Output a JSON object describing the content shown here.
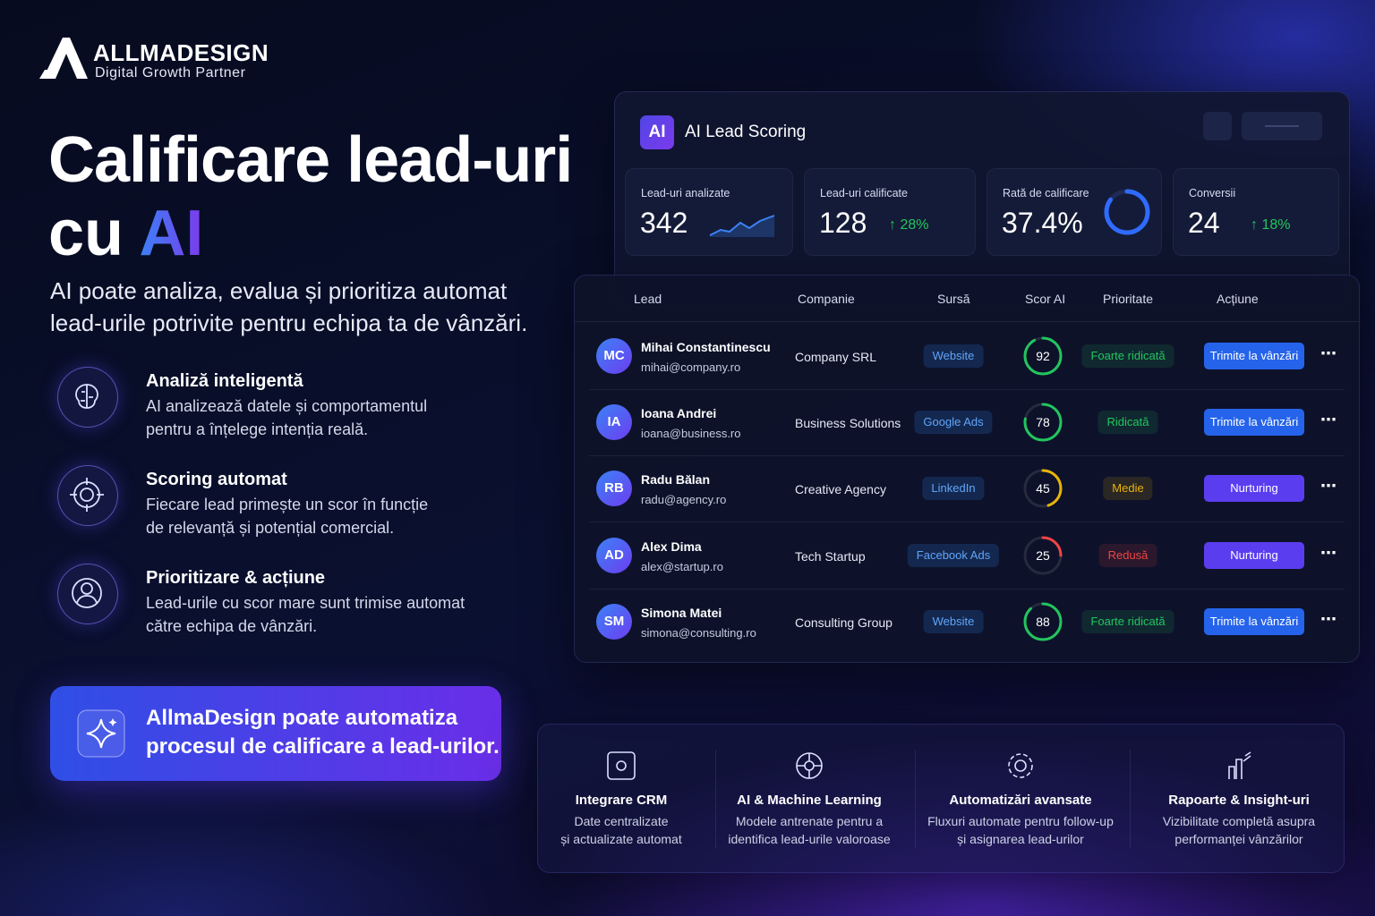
{
  "brand": {
    "name": "ALLMADESIGN",
    "tagline": "Digital Growth Partner"
  },
  "hero": {
    "title_line1": "Calificare lead-uri",
    "title_prefix": "cu",
    "title_highlight": "AI",
    "subtitle_lines": [
      "AI poate analiza, evalua și prioritiza automat",
      "lead-urile potrivite pentru echipa ta de vânzări."
    ]
  },
  "features": [
    {
      "title": "Analiză inteligentă",
      "lines": [
        "AI analizează datele și comportamentul",
        "pentru a înțelege intenția reală."
      ]
    },
    {
      "title": "Scoring automat",
      "lines": [
        "Fiecare lead primește un scor în funcție",
        "de relevanță și potențial comercial."
      ]
    },
    {
      "title": "Prioritizare & acțiune",
      "lines": [
        "Lead-urile cu scor mare sunt trimise automat",
        "către echipa de vânzări."
      ]
    }
  ],
  "cta": {
    "lines": [
      "AllmaDesign poate automatiza",
      "procesul de calificare a lead-urilor."
    ]
  },
  "dashboard": {
    "icon": "AI",
    "title": "AI Lead Scoring",
    "stats": [
      {
        "label": "Lead-uri analizate",
        "value": 342
      },
      {
        "label": "Lead-uri calificate",
        "value": 128,
        "change": "↑ 28%"
      },
      {
        "label": "Rată de calificare",
        "value": "37.4%"
      },
      {
        "label": "Conversii",
        "value": 24,
        "change": "↑ 18%"
      }
    ],
    "columns": [
      "Lead",
      "Companie",
      "Sursă",
      "Scor AI",
      "Prioritate",
      "Acțiune"
    ],
    "rows": [
      {
        "initials": "MC",
        "name": "Mihai Constantinescu",
        "email": "mihai@company.ro",
        "company": "Company SRL",
        "source": "Website",
        "score": 92,
        "score_color": "#22c55e",
        "priority": "Foarte ridicată",
        "priority_color": "#22c55e",
        "action": "Trimite la vânzări",
        "action_color": "#2563eb"
      },
      {
        "initials": "IA",
        "name": "Ioana Andrei",
        "email": "ioana@business.ro",
        "company": "Business Solutions",
        "source": "Google Ads",
        "score": 78,
        "score_color": "#22c55e",
        "priority": "Ridicată",
        "priority_color": "#22c55e",
        "action": "Trimite la vânzări",
        "action_color": "#2563eb"
      },
      {
        "initials": "RB",
        "name": "Radu Bălan",
        "email": "radu@agency.ro",
        "company": "Creative Agency",
        "source": "LinkedIn",
        "score": 45,
        "score_color": "#eab308",
        "priority": "Medie",
        "priority_color": "#eab308",
        "action": "Nurturing",
        "action_color": "#5b3df0"
      },
      {
        "initials": "AD",
        "name": "Alex Dima",
        "email": "alex@startup.ro",
        "company": "Tech Startup",
        "source": "Facebook Ads",
        "score": 25,
        "score_color": "#ef4444",
        "priority": "Redusă",
        "priority_color": "#ef4444",
        "action": "Nurturing",
        "action_color": "#5b3df0"
      },
      {
        "initials": "SM",
        "name": "Simona Matei",
        "email": "simona@consulting.ro",
        "company": "Consulting Group",
        "source": "Website",
        "score": 88,
        "score_color": "#22c55e",
        "priority": "Foarte ridicată",
        "priority_color": "#22c55e",
        "action": "Trimite la vânzări",
        "action_color": "#2563eb"
      }
    ],
    "score_max": 100
  },
  "benefits": [
    {
      "title": "Integrare CRM",
      "lines": [
        "Date centralizate",
        "și actualizate automat"
      ]
    },
    {
      "title": "AI & Machine Learning",
      "lines": [
        "Modele antrenate pentru a",
        "identifica lead-urile valoroase"
      ]
    },
    {
      "title": "Automatizări avansate",
      "lines": [
        "Fluxuri automate pentru follow-up",
        "și asignarea lead-urilor"
      ]
    },
    {
      "title": "Rapoarte & Insight-uri",
      "lines": [
        "Vizibilitate completă asupra",
        "performanței vânzărilor"
      ]
    }
  ]
}
